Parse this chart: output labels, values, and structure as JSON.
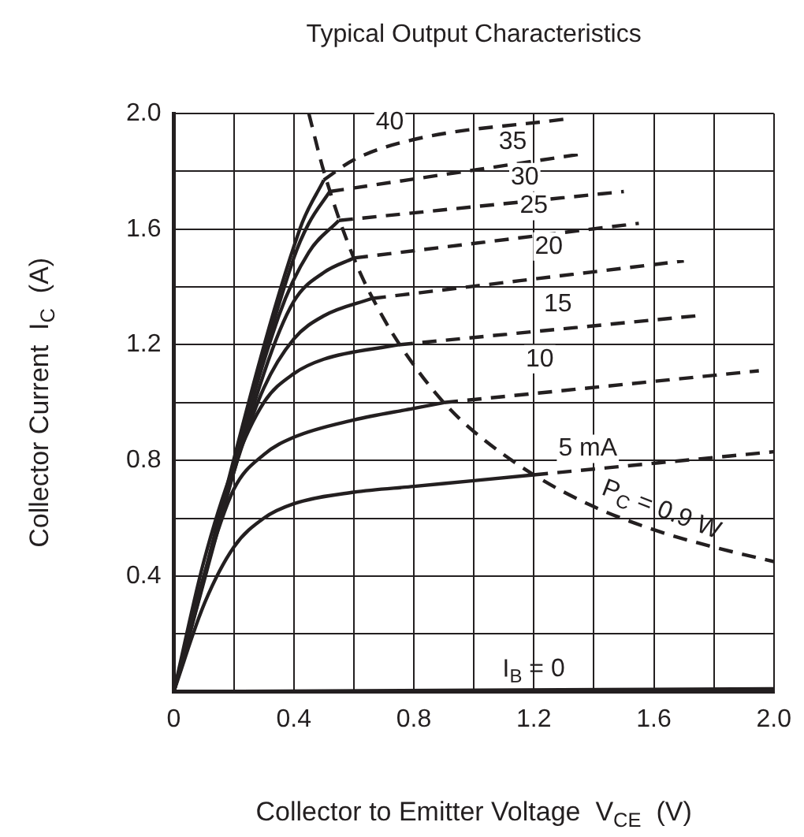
{
  "chart_data": {
    "type": "line",
    "title": "Typical Output Characteristics",
    "xlabel": "Collector to Emitter Voltage  V$_{CE}$  (V)",
    "ylabel": "Collector Current  I$_{C}$  (A)",
    "xlim": [
      0,
      2
    ],
    "ylim": [
      0,
      2
    ],
    "xticks": [
      0,
      {
        "value": 0.2,
        "label": null
      },
      0.4,
      {
        "value": 0.6,
        "label": null
      },
      0.8,
      {
        "value": 1,
        "label": null
      },
      1.2,
      {
        "value": 1.4,
        "label": null
      },
      1.6,
      {
        "value": 1.8,
        "label": null
      },
      {
        "value": 2,
        "label": "2.0"
      }
    ],
    "yticks": [
      {
        "value": 0,
        "label": null
      },
      {
        "value": 0.2,
        "label": null
      },
      0.4,
      {
        "value": 0.6,
        "label": null
      },
      0.8,
      {
        "value": 1,
        "label": null
      },
      1.2,
      {
        "value": 1.4,
        "label": null
      },
      1.6,
      {
        "value": 1.8,
        "label": null
      },
      {
        "value": 2,
        "label": "2.0"
      }
    ],
    "grid": true,
    "legend": false,
    "series": [
      {
        "color": "#231f20",
        "line_style": "solid",
        "x": [
          0,
          2
        ],
        "values": [
          0,
          0.01
        ]
      },
      {
        "color": "#231f20",
        "line_style": "solid",
        "x": [
          0,
          0.1,
          0.2,
          0.3,
          0.4,
          0.6,
          0.8,
          1.0,
          1.2
        ],
        "values": [
          0,
          0.3,
          0.5,
          0.6,
          0.65,
          0.69,
          0.71,
          0.73,
          0.75
        ]
      },
      {
        "color": "#231f20",
        "line_style": "dashed",
        "x": [
          1.2,
          2.0
        ],
        "values": [
          0.75,
          0.83
        ]
      },
      {
        "color": "#231f20",
        "line_style": "solid",
        "x": [
          0,
          0.1,
          0.2,
          0.3,
          0.4,
          0.6,
          0.8,
          0.9
        ],
        "values": [
          0,
          0.4,
          0.7,
          0.82,
          0.88,
          0.94,
          0.98,
          1.0
        ]
      },
      {
        "color": "#231f20",
        "line_style": "dashed",
        "x": [
          0.9,
          1.95
        ],
        "values": [
          1.0,
          1.11
        ]
      },
      {
        "color": "#231f20",
        "line_style": "solid",
        "x": [
          0,
          0.1,
          0.2,
          0.3,
          0.4,
          0.5,
          0.75
        ],
        "values": [
          0,
          0.45,
          0.78,
          1.0,
          1.1,
          1.15,
          1.2
        ]
      },
      {
        "color": "#231f20",
        "line_style": "dashed",
        "x": [
          0.75,
          1.74
        ],
        "values": [
          1.2,
          1.3
        ]
      },
      {
        "color": "#231f20",
        "line_style": "solid",
        "x": [
          0,
          0.2,
          0.3,
          0.4,
          0.5,
          0.66
        ],
        "values": [
          0,
          0.76,
          1.05,
          1.22,
          1.3,
          1.36
        ]
      },
      {
        "color": "#231f20",
        "line_style": "dashed",
        "x": [
          0.66,
          1.7
        ],
        "values": [
          1.36,
          1.49
        ]
      },
      {
        "color": "#231f20",
        "line_style": "solid",
        "x": [
          0,
          0.3,
          0.4,
          0.5,
          0.6
        ],
        "values": [
          0,
          1.1,
          1.35,
          1.45,
          1.5
        ]
      },
      {
        "color": "#231f20",
        "line_style": "dashed",
        "x": [
          0.6,
          1.55
        ],
        "values": [
          1.5,
          1.62
        ]
      },
      {
        "color": "#231f20",
        "line_style": "solid",
        "x": [
          0,
          0.35,
          0.45,
          0.55
        ],
        "values": [
          0,
          1.3,
          1.52,
          1.63
        ]
      },
      {
        "color": "#231f20",
        "line_style": "dashed",
        "x": [
          0.55,
          1.5
        ],
        "values": [
          1.63,
          1.73
        ]
      },
      {
        "color": "#231f20",
        "line_style": "solid",
        "x": [
          0,
          0.4,
          0.45,
          0.52
        ],
        "values": [
          0,
          1.5,
          1.62,
          1.73
        ]
      },
      {
        "color": "#231f20",
        "line_style": "dashed",
        "x": [
          0.52,
          1.36
        ],
        "values": [
          1.73,
          1.86
        ]
      },
      {
        "color": "#231f20",
        "line_style": "solid",
        "x": [
          0,
          0.42,
          0.5
        ],
        "values": [
          0,
          1.6,
          1.77
        ]
      },
      {
        "color": "#231f20",
        "line_style": "dashed",
        "x": [
          0.5,
          0.6,
          0.8,
          1.3
        ],
        "values": [
          1.77,
          1.84,
          1.91,
          1.98
        ]
      },
      {
        "color": "#231f20",
        "line_style": "dashed",
        "x": [
          0.45,
          0.5,
          0.6,
          0.7,
          0.8,
          0.9,
          1.0,
          1.2,
          1.4,
          1.6,
          1.8,
          2.0
        ],
        "values": [
          2.0,
          1.8,
          1.5,
          1.29,
          1.13,
          1.0,
          0.9,
          0.75,
          0.64,
          0.56,
          0.5,
          0.45
        ]
      }
    ],
    "annotations": [
      {
        "text": "I$_{B}$ = 0",
        "x": 1.2,
        "y": 0.006
      },
      {
        "text": "5 mA",
        "x": 1.38,
        "y": 0.84
      },
      {
        "text": "P$_{C}$ = 0.9 W",
        "x": 1.6,
        "y": 0.5625
      },
      {
        "text": "10",
        "x": 1.22,
        "y": 1.15
      },
      {
        "text": "15",
        "x": 1.28,
        "y": 1.34
      },
      {
        "text": "20",
        "x": 1.25,
        "y": 1.54
      },
      {
        "text": "25",
        "x": 1.2,
        "y": 1.68
      },
      {
        "text": "30",
        "x": 1.17,
        "y": 1.78
      },
      {
        "text": "35",
        "x": 1.13,
        "y": 1.9
      },
      {
        "text": "40",
        "x": 0.72,
        "y": 1.97
      }
    ]
  }
}
